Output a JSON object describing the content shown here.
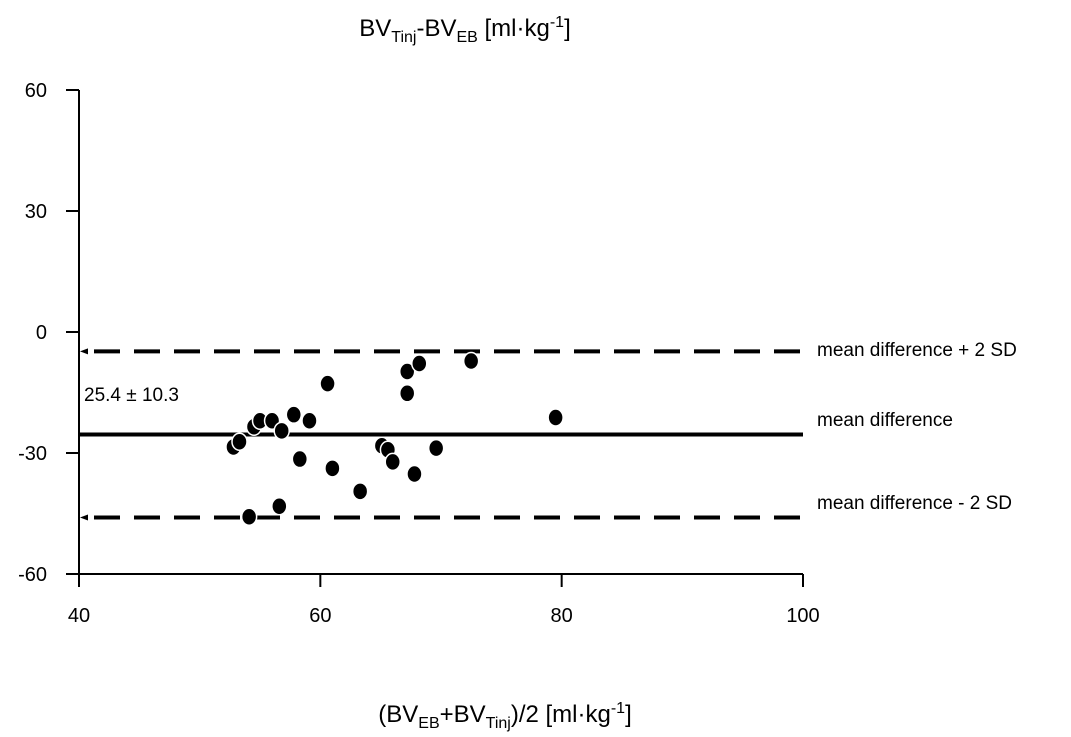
{
  "chart_data": {
    "type": "scatter",
    "title": {
      "parts": [
        {
          "text": "BV",
          "sub": false
        },
        {
          "text": "Tinj",
          "sub": true
        },
        {
          "text": "-BV",
          "sub": false
        },
        {
          "text": "EB",
          "sub": true
        },
        {
          "text": " [ml·kg",
          "sub": false
        },
        {
          "text": "-1",
          "sup": true
        },
        {
          "text": "]",
          "sub": false
        }
      ]
    },
    "xlabel": {
      "parts": [
        {
          "text": "(BV",
          "sub": false
        },
        {
          "text": "EB",
          "sub": true
        },
        {
          "text": "+BV",
          "sub": false
        },
        {
          "text": "Tinj",
          "sub": true
        },
        {
          "text": ")/2 [ml·kg",
          "sub": false
        },
        {
          "text": "-1",
          "sup": true
        },
        {
          "text": "]",
          "sub": false
        }
      ]
    },
    "xlim": [
      40,
      100
    ],
    "ylim": [
      -60,
      60
    ],
    "xticks": [
      40,
      60,
      80,
      100
    ],
    "yticks": [
      60,
      30,
      0,
      -30,
      -60
    ],
    "grid": false,
    "points": [
      {
        "x": 52.8,
        "y": -28.5
      },
      {
        "x": 53.3,
        "y": -27.2
      },
      {
        "x": 54.5,
        "y": -23.5
      },
      {
        "x": 55.0,
        "y": -22.0
      },
      {
        "x": 56.0,
        "y": -22.0
      },
      {
        "x": 56.8,
        "y": -24.5
      },
      {
        "x": 57.8,
        "y": -20.5
      },
      {
        "x": 58.3,
        "y": -31.5
      },
      {
        "x": 59.1,
        "y": -22.0
      },
      {
        "x": 60.6,
        "y": -12.8
      },
      {
        "x": 61.0,
        "y": -33.8
      },
      {
        "x": 63.3,
        "y": -39.5
      },
      {
        "x": 65.1,
        "y": -28.2
      },
      {
        "x": 65.6,
        "y": -29.2
      },
      {
        "x": 66.0,
        "y": -32.2
      },
      {
        "x": 67.2,
        "y": -9.8
      },
      {
        "x": 67.2,
        "y": -15.2
      },
      {
        "x": 67.8,
        "y": -35.2
      },
      {
        "x": 68.2,
        "y": -7.8
      },
      {
        "x": 69.6,
        "y": -28.8
      },
      {
        "x": 72.5,
        "y": -7.2
      },
      {
        "x": 79.5,
        "y": -21.2
      },
      {
        "x": 54.1,
        "y": -45.8
      },
      {
        "x": 56.6,
        "y": -43.2
      }
    ],
    "mean_difference": -25.4,
    "upper_limit": -4.8,
    "lower_limit": -46.0,
    "annotations": {
      "upper": "mean difference + 2 SD",
      "mean": "mean difference",
      "lower": "mean difference - 2 SD",
      "stat": "25.4 ± 10.3"
    }
  }
}
